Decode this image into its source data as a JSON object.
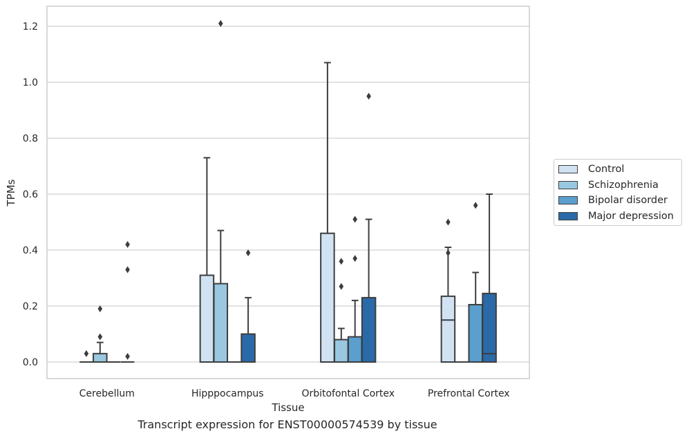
{
  "caption": "Transcript expression for ENST00000574539 by tissue",
  "chart_data": {
    "type": "box",
    "xlabel": "Tissue",
    "ylabel": "TPMs",
    "ylim": [
      -0.06,
      1.27
    ],
    "yticks": [
      "0.0",
      "0.2",
      "0.4",
      "0.6",
      "0.8",
      "1.0",
      "1.2"
    ],
    "grid": "horizontal",
    "legend_position": "right",
    "categories": [
      "Cerebellum",
      "Hipppocampus",
      "Orbitofontal Cortex",
      "Prefrontal Cortex"
    ],
    "series": [
      {
        "name": "Control",
        "color": "#d1e2f3",
        "boxes": [
          {
            "q1": 0,
            "median": 0,
            "q3": 0,
            "whislo": 0,
            "whishi": 0,
            "fliers": [
              0.03
            ]
          },
          {
            "q1": 0,
            "median": 0,
            "q3": 0.31,
            "whislo": 0,
            "whishi": 0.73,
            "fliers": []
          },
          {
            "q1": 0,
            "median": 0,
            "q3": 0.46,
            "whislo": 0,
            "whishi": 1.07,
            "fliers": []
          },
          {
            "q1": 0,
            "median": 0.15,
            "q3": 0.235,
            "whislo": 0,
            "whishi": 0.41,
            "fliers": [
              0.5,
              0.39
            ]
          }
        ]
      },
      {
        "name": "Schizophrenia",
        "color": "#9ac8e0",
        "boxes": [
          {
            "q1": 0,
            "median": 0,
            "q3": 0.03,
            "whislo": 0,
            "whishi": 0.07,
            "fliers": [
              0.19,
              0.09
            ]
          },
          {
            "q1": 0,
            "median": 0,
            "q3": 0.28,
            "whislo": 0,
            "whishi": 0.47,
            "fliers": [
              1.21
            ]
          },
          {
            "q1": 0,
            "median": 0,
            "q3": 0.08,
            "whislo": 0,
            "whishi": 0.12,
            "fliers": [
              0.36,
              0.27
            ]
          },
          {
            "q1": 0,
            "median": 0,
            "q3": 0,
            "whislo": 0,
            "whishi": 0,
            "fliers": []
          }
        ]
      },
      {
        "name": "Bipolar disorder",
        "color": "#5a9fcd",
        "boxes": [
          {
            "q1": 0,
            "median": 0,
            "q3": 0,
            "whislo": 0,
            "whishi": 0,
            "fliers": []
          },
          {
            "q1": 0,
            "median": 0,
            "q3": 0,
            "whislo": 0,
            "whishi": 0,
            "fliers": []
          },
          {
            "q1": 0,
            "median": 0,
            "q3": 0.09,
            "whislo": 0,
            "whishi": 0.22,
            "fliers": [
              0.51,
              0.37
            ]
          },
          {
            "q1": 0,
            "median": 0,
            "q3": 0.205,
            "whislo": 0,
            "whishi": 0.32,
            "fliers": [
              0.56
            ]
          }
        ]
      },
      {
        "name": "Major depression",
        "color": "#2b6aa9",
        "boxes": [
          {
            "q1": 0,
            "median": 0,
            "q3": 0,
            "whislo": 0,
            "whishi": 0,
            "fliers": [
              0.42,
              0.33,
              0.02
            ]
          },
          {
            "q1": 0,
            "median": 0,
            "q3": 0.1,
            "whislo": 0,
            "whishi": 0.23,
            "fliers": [
              0.39
            ]
          },
          {
            "q1": 0,
            "median": 0,
            "q3": 0.23,
            "whislo": 0,
            "whishi": 0.51,
            "fliers": [
              0.95
            ]
          },
          {
            "q1": 0,
            "median": 0.03,
            "q3": 0.245,
            "whislo": 0,
            "whishi": 0.6,
            "fliers": []
          }
        ]
      }
    ]
  }
}
